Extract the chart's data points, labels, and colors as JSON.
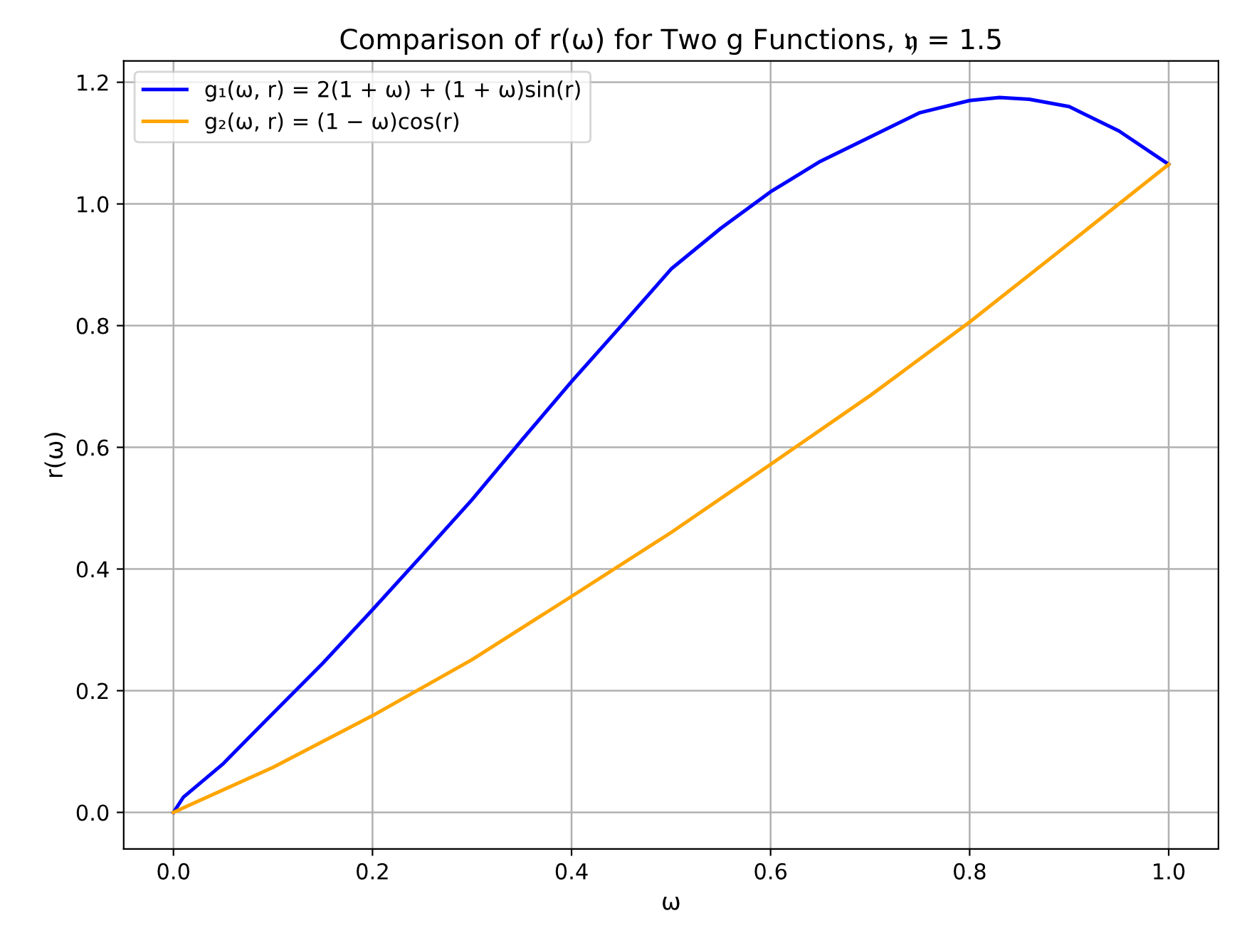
{
  "chart_data": {
    "type": "line",
    "title": "Comparison of r(ω) for Two g Functions, 𝔶 = 1.5",
    "xlabel": "ω",
    "ylabel": "r(ω)",
    "series": [
      {
        "name": "g₁(ω, r) = 2(1 + ω) + (1 + ω)sin(r)",
        "color": "#0000ff",
        "x": [
          0,
          0.01,
          0.05,
          0.1,
          0.15,
          0.2,
          0.25,
          0.3,
          0.35,
          0.4,
          0.45,
          0.5,
          0.55,
          0.6,
          0.65,
          0.7,
          0.75,
          0.8,
          0.83,
          0.86,
          0.9,
          0.95,
          1.0
        ],
        "values": [
          0.0,
          0.025,
          0.08,
          0.163,
          0.245,
          0.333,
          0.423,
          0.514,
          0.612,
          0.708,
          0.8,
          0.893,
          0.96,
          1.02,
          1.07,
          1.11,
          1.15,
          1.17,
          1.175,
          1.172,
          1.16,
          1.12,
          1.065
        ]
      },
      {
        "name": "g₂(ω, r) = (1 − ω)cos(r)",
        "color": "#ffa500",
        "x": [
          0,
          0.1,
          0.2,
          0.3,
          0.4,
          0.5,
          0.6,
          0.7,
          0.8,
          0.9,
          1.0
        ],
        "values": [
          0.0,
          0.074,
          0.159,
          0.251,
          0.355,
          0.46,
          0.572,
          0.685,
          0.806,
          0.935,
          1.065
        ]
      }
    ],
    "xlim": [
      -0.05,
      1.05
    ],
    "ylim": [
      -0.06,
      1.235
    ],
    "xticks": [
      {
        "value": 0,
        "label": "0.0"
      },
      0.2,
      0.4,
      0.6,
      0.8,
      {
        "value": 1,
        "label": "1.0"
      }
    ],
    "yticks": [
      {
        "value": 0,
        "label": "0.0"
      },
      0.2,
      0.4,
      0.6,
      0.8,
      {
        "value": 1,
        "label": "1.0"
      },
      1.2
    ],
    "grid": true,
    "legend": "top left",
    "marker": "none",
    "line_style": "solid"
  }
}
